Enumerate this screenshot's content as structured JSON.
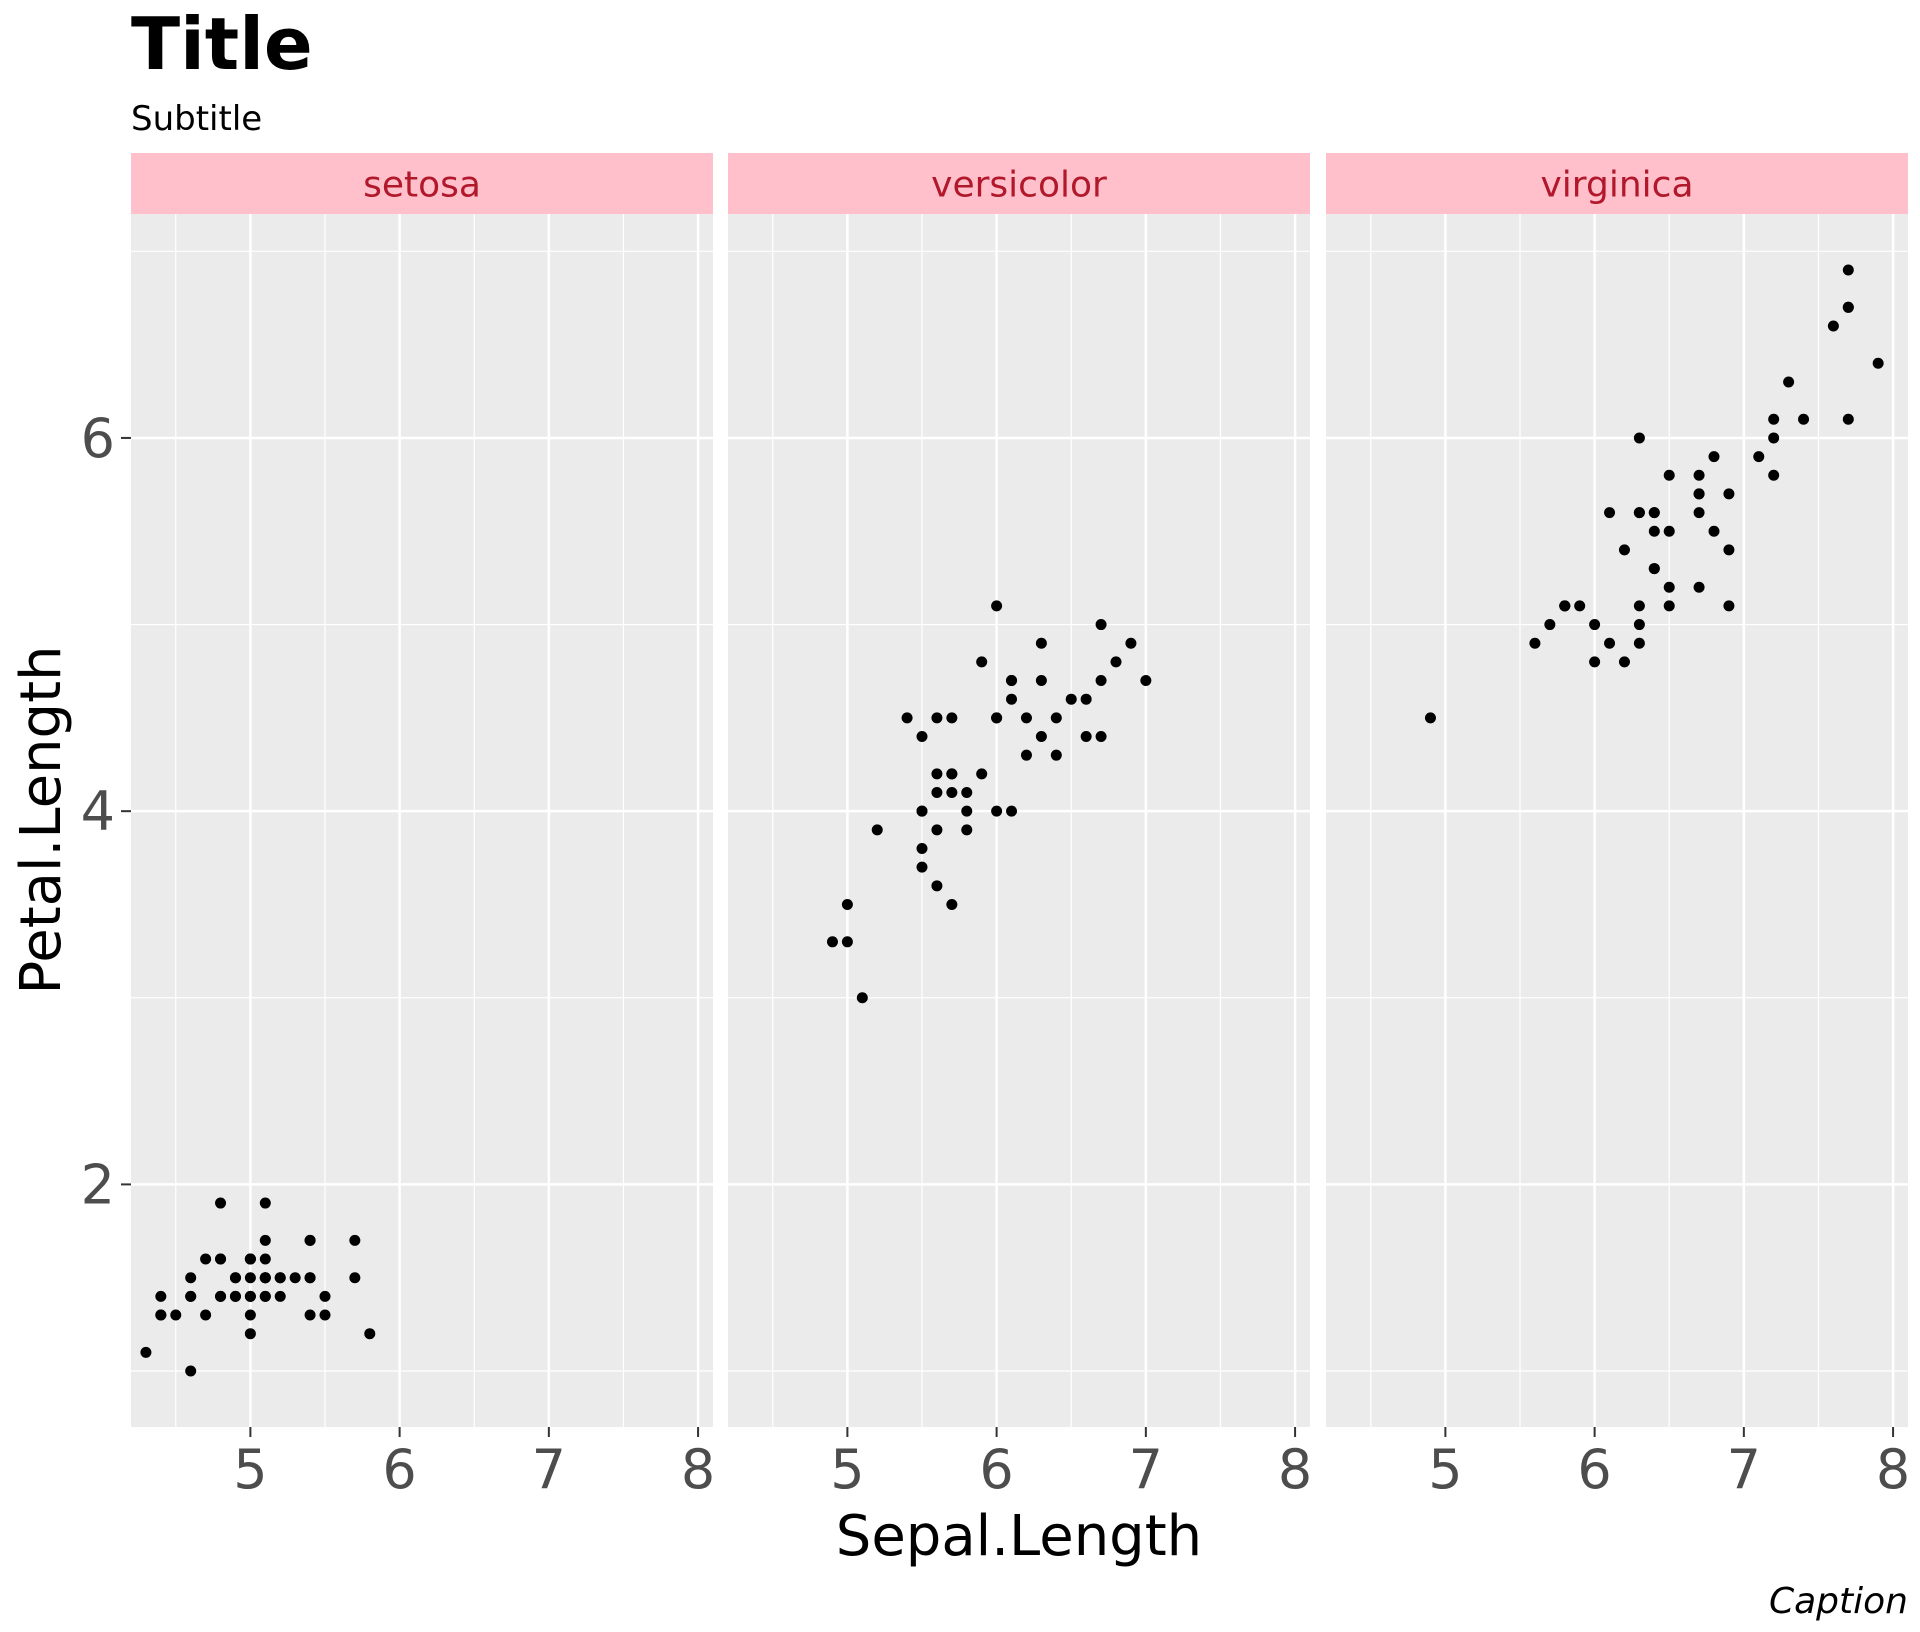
{
  "chart_data": {
    "type": "scatter",
    "title": "Title",
    "subtitle": "Subtitle",
    "caption": "Caption",
    "xlabel": "Sepal.Length",
    "ylabel": "Petal.Length",
    "xlim": [
      4.2,
      8.1
    ],
    "ylim": [
      0.7,
      7.2
    ],
    "xticks": [
      5,
      6,
      7,
      8
    ],
    "yticks": [
      2,
      4,
      6
    ],
    "grid": true,
    "colors": {
      "panel_background": "#ebebeb",
      "grid": "#ffffff",
      "strip_background": "#ffc0cb",
      "strip_text": "#b2182b",
      "point": "#000000",
      "tick_text": "#4d4d4d"
    },
    "facets": [
      {
        "label": "setosa",
        "points": [
          {
            "x": 5.1,
            "y": 1.4
          },
          {
            "x": 4.9,
            "y": 1.4
          },
          {
            "x": 4.7,
            "y": 1.3
          },
          {
            "x": 4.6,
            "y": 1.5
          },
          {
            "x": 5.0,
            "y": 1.4
          },
          {
            "x": 5.4,
            "y": 1.7
          },
          {
            "x": 4.6,
            "y": 1.4
          },
          {
            "x": 5.0,
            "y": 1.5
          },
          {
            "x": 4.4,
            "y": 1.4
          },
          {
            "x": 4.9,
            "y": 1.5
          },
          {
            "x": 5.4,
            "y": 1.5
          },
          {
            "x": 4.8,
            "y": 1.6
          },
          {
            "x": 4.8,
            "y": 1.4
          },
          {
            "x": 4.3,
            "y": 1.1
          },
          {
            "x": 5.8,
            "y": 1.2
          },
          {
            "x": 5.7,
            "y": 1.5
          },
          {
            "x": 5.4,
            "y": 1.3
          },
          {
            "x": 5.1,
            "y": 1.4
          },
          {
            "x": 5.7,
            "y": 1.7
          },
          {
            "x": 5.1,
            "y": 1.5
          },
          {
            "x": 5.4,
            "y": 1.7
          },
          {
            "x": 5.1,
            "y": 1.5
          },
          {
            "x": 4.6,
            "y": 1.0
          },
          {
            "x": 5.1,
            "y": 1.7
          },
          {
            "x": 4.8,
            "y": 1.9
          },
          {
            "x": 5.0,
            "y": 1.6
          },
          {
            "x": 5.0,
            "y": 1.6
          },
          {
            "x": 5.2,
            "y": 1.5
          },
          {
            "x": 5.2,
            "y": 1.4
          },
          {
            "x": 4.7,
            "y": 1.6
          },
          {
            "x": 4.8,
            "y": 1.6
          },
          {
            "x": 5.4,
            "y": 1.5
          },
          {
            "x": 5.2,
            "y": 1.5
          },
          {
            "x": 5.5,
            "y": 1.4
          },
          {
            "x": 4.9,
            "y": 1.5
          },
          {
            "x": 5.0,
            "y": 1.2
          },
          {
            "x": 5.5,
            "y": 1.3
          },
          {
            "x": 4.9,
            "y": 1.4
          },
          {
            "x": 4.4,
            "y": 1.3
          },
          {
            "x": 5.1,
            "y": 1.5
          },
          {
            "x": 5.0,
            "y": 1.3
          },
          {
            "x": 4.5,
            "y": 1.3
          },
          {
            "x": 4.4,
            "y": 1.3
          },
          {
            "x": 5.0,
            "y": 1.6
          },
          {
            "x": 5.1,
            "y": 1.9
          },
          {
            "x": 4.8,
            "y": 1.4
          },
          {
            "x": 5.1,
            "y": 1.6
          },
          {
            "x": 4.6,
            "y": 1.4
          },
          {
            "x": 5.3,
            "y": 1.5
          },
          {
            "x": 5.0,
            "y": 1.4
          }
        ]
      },
      {
        "label": "versicolor",
        "points": [
          {
            "x": 7.0,
            "y": 4.7
          },
          {
            "x": 6.4,
            "y": 4.5
          },
          {
            "x": 6.9,
            "y": 4.9
          },
          {
            "x": 5.5,
            "y": 4.0
          },
          {
            "x": 6.5,
            "y": 4.6
          },
          {
            "x": 5.7,
            "y": 4.5
          },
          {
            "x": 6.3,
            "y": 4.7
          },
          {
            "x": 4.9,
            "y": 3.3
          },
          {
            "x": 6.6,
            "y": 4.6
          },
          {
            "x": 5.2,
            "y": 3.9
          },
          {
            "x": 5.0,
            "y": 3.5
          },
          {
            "x": 5.9,
            "y": 4.2
          },
          {
            "x": 6.0,
            "y": 4.0
          },
          {
            "x": 6.1,
            "y": 4.7
          },
          {
            "x": 5.6,
            "y": 3.6
          },
          {
            "x": 6.7,
            "y": 4.4
          },
          {
            "x": 5.6,
            "y": 4.5
          },
          {
            "x": 5.8,
            "y": 4.1
          },
          {
            "x": 6.2,
            "y": 4.5
          },
          {
            "x": 5.6,
            "y": 3.9
          },
          {
            "x": 5.9,
            "y": 4.8
          },
          {
            "x": 6.1,
            "y": 4.0
          },
          {
            "x": 6.3,
            "y": 4.9
          },
          {
            "x": 6.1,
            "y": 4.7
          },
          {
            "x": 6.4,
            "y": 4.3
          },
          {
            "x": 6.6,
            "y": 4.4
          },
          {
            "x": 6.8,
            "y": 4.8
          },
          {
            "x": 6.7,
            "y": 5.0
          },
          {
            "x": 6.0,
            "y": 4.5
          },
          {
            "x": 5.7,
            "y": 3.5
          },
          {
            "x": 5.5,
            "y": 3.8
          },
          {
            "x": 5.5,
            "y": 3.7
          },
          {
            "x": 5.8,
            "y": 3.9
          },
          {
            "x": 6.0,
            "y": 5.1
          },
          {
            "x": 5.4,
            "y": 4.5
          },
          {
            "x": 6.0,
            "y": 4.5
          },
          {
            "x": 6.7,
            "y": 4.7
          },
          {
            "x": 6.3,
            "y": 4.4
          },
          {
            "x": 5.6,
            "y": 4.1
          },
          {
            "x": 5.5,
            "y": 4.0
          },
          {
            "x": 5.5,
            "y": 4.4
          },
          {
            "x": 6.1,
            "y": 4.6
          },
          {
            "x": 5.8,
            "y": 4.0
          },
          {
            "x": 5.0,
            "y": 3.3
          },
          {
            "x": 5.6,
            "y": 4.2
          },
          {
            "x": 5.7,
            "y": 4.2
          },
          {
            "x": 5.7,
            "y": 4.2
          },
          {
            "x": 6.2,
            "y": 4.3
          },
          {
            "x": 5.1,
            "y": 3.0
          },
          {
            "x": 5.7,
            "y": 4.1
          }
        ]
      },
      {
        "label": "virginica",
        "points": [
          {
            "x": 6.3,
            "y": 6.0
          },
          {
            "x": 5.8,
            "y": 5.1
          },
          {
            "x": 7.1,
            "y": 5.9
          },
          {
            "x": 6.3,
            "y": 5.6
          },
          {
            "x": 6.5,
            "y": 5.8
          },
          {
            "x": 7.6,
            "y": 6.6
          },
          {
            "x": 4.9,
            "y": 4.5
          },
          {
            "x": 7.3,
            "y": 6.3
          },
          {
            "x": 6.7,
            "y": 5.8
          },
          {
            "x": 7.2,
            "y": 6.1
          },
          {
            "x": 6.5,
            "y": 5.1
          },
          {
            "x": 6.4,
            "y": 5.3
          },
          {
            "x": 6.8,
            "y": 5.5
          },
          {
            "x": 5.7,
            "y": 5.0
          },
          {
            "x": 5.8,
            "y": 5.1
          },
          {
            "x": 6.4,
            "y": 5.3
          },
          {
            "x": 6.5,
            "y": 5.5
          },
          {
            "x": 7.7,
            "y": 6.7
          },
          {
            "x": 7.7,
            "y": 6.9
          },
          {
            "x": 6.0,
            "y": 5.0
          },
          {
            "x": 6.9,
            "y": 5.7
          },
          {
            "x": 5.6,
            "y": 4.9
          },
          {
            "x": 7.7,
            "y": 6.7
          },
          {
            "x": 6.3,
            "y": 4.9
          },
          {
            "x": 6.7,
            "y": 5.7
          },
          {
            "x": 7.2,
            "y": 6.0
          },
          {
            "x": 6.2,
            "y": 4.8
          },
          {
            "x": 6.1,
            "y": 4.9
          },
          {
            "x": 6.4,
            "y": 5.6
          },
          {
            "x": 7.2,
            "y": 5.8
          },
          {
            "x": 7.4,
            "y": 6.1
          },
          {
            "x": 7.9,
            "y": 6.4
          },
          {
            "x": 6.4,
            "y": 5.6
          },
          {
            "x": 6.3,
            "y": 5.1
          },
          {
            "x": 6.1,
            "y": 5.6
          },
          {
            "x": 7.7,
            "y": 6.1
          },
          {
            "x": 6.3,
            "y": 5.6
          },
          {
            "x": 6.4,
            "y": 5.5
          },
          {
            "x": 6.0,
            "y": 4.8
          },
          {
            "x": 6.9,
            "y": 5.4
          },
          {
            "x": 6.7,
            "y": 5.6
          },
          {
            "x": 6.9,
            "y": 5.1
          },
          {
            "x": 5.8,
            "y": 5.1
          },
          {
            "x": 6.8,
            "y": 5.9
          },
          {
            "x": 6.7,
            "y": 5.7
          },
          {
            "x": 6.7,
            "y": 5.2
          },
          {
            "x": 6.3,
            "y": 5.0
          },
          {
            "x": 6.5,
            "y": 5.2
          },
          {
            "x": 6.2,
            "y": 5.4
          },
          {
            "x": 5.9,
            "y": 5.1
          }
        ]
      }
    ]
  }
}
